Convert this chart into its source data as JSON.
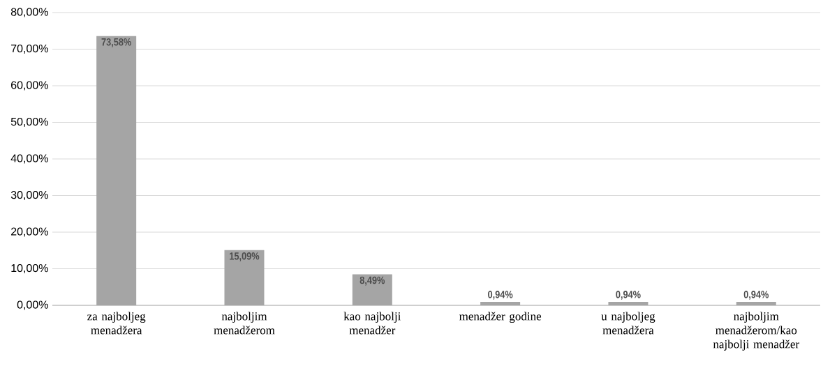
{
  "chart_data": {
    "type": "bar",
    "categories": [
      "za najboljeg menadžera",
      "najboljim menadžerom",
      "kao najbolji menadžer",
      "menadžer godine",
      "u najboljeg menadžera",
      "najboljim menadžerom/kao najbolji menadžer"
    ],
    "values": [
      73.58,
      15.09,
      8.49,
      0.94,
      0.94,
      0.94
    ],
    "value_labels": [
      "73,58%",
      "15,09%",
      "8,49%",
      "0,94%",
      "0,94%",
      "0,94%"
    ],
    "color": "#a5a5a5",
    "ylim": [
      0,
      80
    ],
    "yticks": [
      {
        "value": 0,
        "label": "0,00%"
      },
      {
        "value": 10,
        "label": "10,00%"
      },
      {
        "value": 20,
        "label": "20,00%"
      },
      {
        "value": 30,
        "label": "30,00%"
      },
      {
        "value": 40,
        "label": "40,00%"
      },
      {
        "value": 50,
        "label": "50,00%"
      },
      {
        "value": 60,
        "label": "60,00%"
      },
      {
        "value": 70,
        "label": "70,00%"
      },
      {
        "value": 80,
        "label": "80,00%"
      }
    ],
    "grid": "y"
  }
}
